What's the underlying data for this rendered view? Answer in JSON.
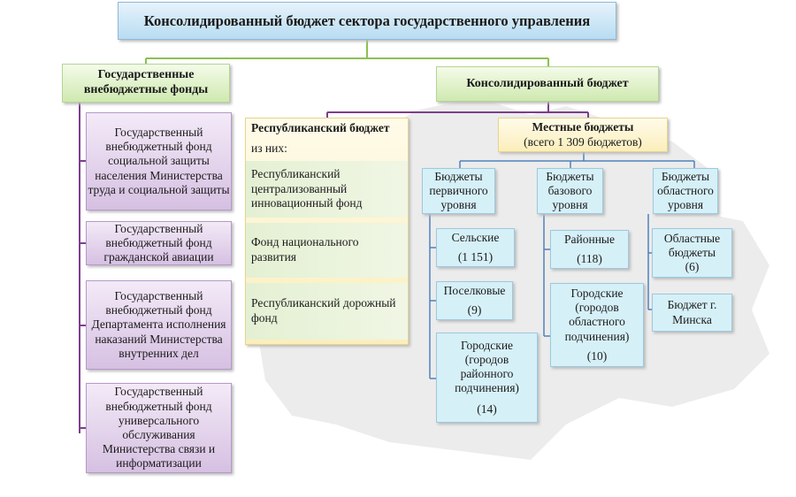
{
  "title": "Консолидированный бюджет сектора государственного управления",
  "offbudget": {
    "header": "Государственные внебюджетные фонды",
    "items": [
      "Государственный внебюджетный фонд социальной защиты населения Министерства труда и социальной защиты",
      "Государственный внебюджетный фонд гражданской авиации",
      "Государственный внебюджетный фонд Департамента исполнения наказаний Министерства внутренних дел",
      "Государственный внебюджетный фонд универсального обслуживания Министерства связи и информатизации"
    ]
  },
  "consolidated": {
    "header": "Консолидированный бюджет"
  },
  "republican": {
    "header": "Республиканский бюджет",
    "of_which": "из них:",
    "funds": [
      "Республиканский централизованный инновационный фонд",
      "Фонд национального развития",
      "Республиканский дорожный фонд"
    ]
  },
  "local": {
    "header": "Местные бюджеты",
    "total": "(всего 1 309 бюджетов)",
    "levels": [
      {
        "label": "Бюджеты первичного уровня",
        "items": [
          {
            "name": "Сельские",
            "count": "(1 151)"
          },
          {
            "name": "Поселковые",
            "count": "(9)"
          },
          {
            "name": "Городские (городов районного подчинения)",
            "count": "(14)"
          }
        ]
      },
      {
        "label": "Бюджеты базового уровня",
        "items": [
          {
            "name": "Районные",
            "count": "(118)"
          },
          {
            "name": "Городские (городов областного подчинения)",
            "count": "(10)"
          }
        ]
      },
      {
        "label": "Бюджеты областного уровня",
        "items": [
          {
            "name": "Областные бюджеты",
            "count": "(6)"
          },
          {
            "name": "Бюджет г. Минска",
            "count": ""
          }
        ]
      }
    ]
  },
  "colors": {
    "green_line": "#8cc152",
    "purple_line": "#7b3f8c",
    "blue_line": "#4f81bd",
    "map": "#ececec"
  }
}
